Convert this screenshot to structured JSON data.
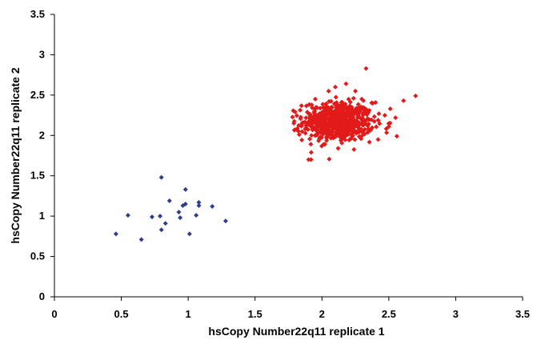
{
  "chart_data": {
    "type": "scatter",
    "title": "",
    "xlabel": "hsCopy Number22q11 replicate 1",
    "ylabel": "hsCopy Number22q11 replicate 2",
    "xlim": [
      0,
      3.5
    ],
    "ylim": [
      0,
      3.5
    ],
    "xticks": [
      "0",
      "0.5",
      "1",
      "1.5",
      "2",
      "2.5",
      "3",
      "3.5"
    ],
    "yticks": [
      "0",
      "0.5",
      "1",
      "1.5",
      "2",
      "2.5",
      "3",
      "3.5"
    ],
    "grid": false,
    "legend": "none",
    "series": [
      {
        "color": "#2e3d8f",
        "marker": "diamond",
        "points": [
          [
            0.46,
            0.78
          ],
          [
            0.55,
            1.01
          ],
          [
            0.65,
            0.71
          ],
          [
            0.73,
            0.99
          ],
          [
            0.79,
            1.0
          ],
          [
            0.8,
            0.83
          ],
          [
            0.8,
            1.48
          ],
          [
            0.83,
            0.91
          ],
          [
            0.86,
            1.19
          ],
          [
            0.93,
            1.05
          ],
          [
            0.94,
            0.98
          ],
          [
            0.96,
            1.13
          ],
          [
            0.98,
            1.15
          ],
          [
            0.98,
            1.33
          ],
          [
            1.01,
            0.78
          ],
          [
            1.06,
            1.01
          ],
          [
            1.08,
            1.17
          ],
          [
            1.08,
            1.13
          ],
          [
            1.18,
            1.12
          ],
          [
            1.28,
            0.94
          ]
        ]
      },
      {
        "color": "#e31a1a",
        "marker": "diamond",
        "cluster": {
          "count": 650,
          "center": [
            2.12,
            2.17
          ],
          "spread": [
            0.13,
            0.12
          ],
          "x_range": [
            1.78,
            2.7
          ],
          "y_range": [
            1.7,
            2.83
          ]
        },
        "points": [
          [
            2.33,
            2.83
          ],
          [
            2.7,
            2.49
          ],
          [
            1.9,
            1.7
          ],
          [
            1.79,
            2.15
          ],
          [
            2.56,
            1.99
          ],
          [
            2.61,
            2.43
          ],
          [
            2.18,
            2.64
          ],
          [
            2.1,
            2.6
          ],
          [
            1.92,
            1.79
          ],
          [
            2.47,
            2.25
          ],
          [
            2.5,
            2.11
          ],
          [
            2.42,
            1.95
          ],
          [
            1.83,
            2.01
          ],
          [
            2.05,
            2.55
          ],
          [
            2.38,
            2.4
          ],
          [
            2.55,
            2.22
          ],
          [
            1.95,
            2.45
          ],
          [
            2.25,
            2.55
          ]
        ]
      }
    ]
  }
}
